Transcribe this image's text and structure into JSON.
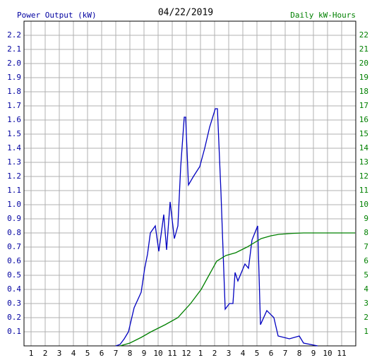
{
  "chart_data": {
    "type": "line",
    "title": "04/22/2019",
    "ylabel": "Power Output (kW)",
    "y2label": "Daily kW-Hours",
    "xlim": [
      0.5,
      24
    ],
    "ylim": [
      0,
      2.3
    ],
    "y2lim": [
      0,
      23
    ],
    "grid": true,
    "xticks": [
      {
        "value": 1,
        "label": "1"
      },
      {
        "value": 2,
        "label": "2"
      },
      {
        "value": 3,
        "label": "3"
      },
      {
        "value": 4,
        "label": "4"
      },
      {
        "value": 5,
        "label": "5"
      },
      {
        "value": 6,
        "label": "6"
      },
      {
        "value": 7,
        "label": "7"
      },
      {
        "value": 8,
        "label": "8"
      },
      {
        "value": 9,
        "label": "9"
      },
      {
        "value": 10,
        "label": "10"
      },
      {
        "value": 11,
        "label": "11"
      },
      {
        "value": 12,
        "label": "12"
      },
      {
        "value": 13,
        "label": "1"
      },
      {
        "value": 14,
        "label": "2"
      },
      {
        "value": 15,
        "label": "3"
      },
      {
        "value": 16,
        "label": "4"
      },
      {
        "value": 17,
        "label": "5"
      },
      {
        "value": 18,
        "label": "6"
      },
      {
        "value": 19,
        "label": "7"
      },
      {
        "value": 20,
        "label": "8"
      },
      {
        "value": 21,
        "label": "9"
      },
      {
        "value": 22,
        "label": "10"
      },
      {
        "value": 23,
        "label": "11"
      }
    ],
    "yticks": [
      0.1,
      0.2,
      0.3,
      0.4,
      0.5,
      0.6,
      0.7,
      0.8,
      0.9,
      {
        "value": 1,
        "label": "1.0"
      },
      1.1,
      1.2,
      1.3,
      1.4,
      1.5,
      1.6,
      1.7,
      1.8,
      1.9,
      {
        "value": 2,
        "label": "2.0"
      },
      2.1,
      2.2
    ],
    "y2ticks": [
      1,
      2,
      3,
      4,
      5,
      6,
      7,
      8,
      9,
      10,
      11,
      12,
      13,
      14,
      15,
      16,
      17,
      18,
      19,
      20,
      21,
      22
    ],
    "series": [
      {
        "color": "#0000c0",
        "axis": "y",
        "x": [
          7.0,
          7.3,
          7.6,
          7.9,
          8.3,
          8.8,
          9.05,
          9.25,
          9.45,
          9.8,
          10.05,
          10.4,
          10.6,
          10.85,
          11.15,
          11.4,
          11.6,
          11.85,
          11.95,
          12.15,
          12.5,
          12.95,
          13.3,
          13.65,
          14.05,
          14.2,
          14.45,
          14.75,
          15.05,
          15.3,
          15.45,
          15.65,
          16.15,
          16.4,
          16.65,
          17.05,
          17.25,
          17.7,
          18.2,
          18.5,
          19.3,
          20.0,
          20.3,
          21.3
        ],
        "values": [
          0,
          0.01,
          0.05,
          0.1,
          0.27,
          0.38,
          0.55,
          0.65,
          0.8,
          0.85,
          0.67,
          0.93,
          0.68,
          1.02,
          0.76,
          0.85,
          1.27,
          1.62,
          1.62,
          1.14,
          1.2,
          1.27,
          1.4,
          1.55,
          1.68,
          1.68,
          1.09,
          0.26,
          0.3,
          0.3,
          0.52,
          0.46,
          0.58,
          0.55,
          0.75,
          0.85,
          0.15,
          0.25,
          0.2,
          0.07,
          0.05,
          0.07,
          0.02,
          0
        ]
      },
      {
        "color": "#008000",
        "axis": "y2",
        "x": [
          7.3,
          8.0,
          8.8,
          9.5,
          10.5,
          11.4,
          12.3,
          13.05,
          13.6,
          14.15,
          14.8,
          15.5,
          16.3,
          17.3,
          18.0,
          18.55,
          19.5,
          20.3,
          23.95
        ],
        "values": [
          0,
          0.2,
          0.6,
          1,
          1.5,
          2,
          3,
          4,
          5,
          6,
          6.4,
          6.6,
          7,
          7.6,
          7.8,
          7.9,
          7.97,
          8,
          8
        ]
      }
    ]
  }
}
